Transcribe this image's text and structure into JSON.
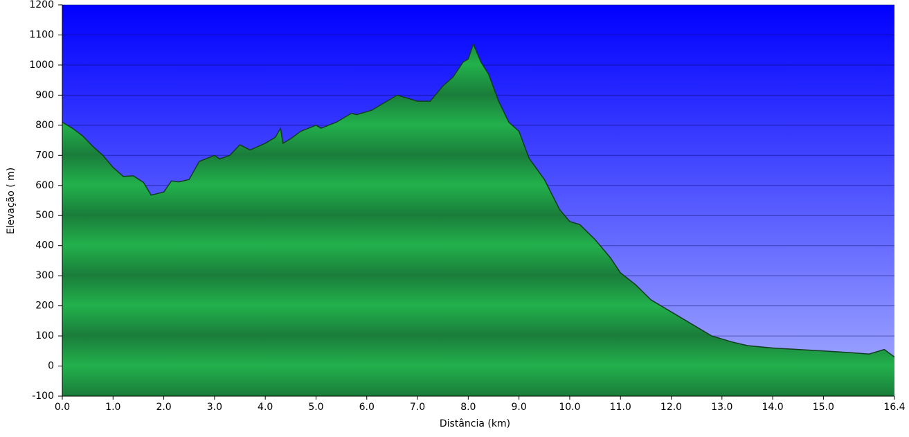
{
  "chart_data": {
    "type": "area",
    "x_label": "Distância  (km)",
    "y_label": "Elevação ( m)",
    "x": [
      0.0,
      0.2,
      0.4,
      0.6,
      0.8,
      1.0,
      1.2,
      1.4,
      1.6,
      1.75,
      2.0,
      2.15,
      2.3,
      2.5,
      2.7,
      3.0,
      3.1,
      3.3,
      3.5,
      3.7,
      4.0,
      4.2,
      4.3,
      4.35,
      4.5,
      4.7,
      5.0,
      5.1,
      5.4,
      5.7,
      5.8,
      6.1,
      6.3,
      6.6,
      6.8,
      7.0,
      7.25,
      7.5,
      7.7,
      7.9,
      8.0,
      8.1,
      8.25,
      8.4,
      8.6,
      8.8,
      9.0,
      9.2,
      9.5,
      9.8,
      10.0,
      10.2,
      10.5,
      10.8,
      11.0,
      11.3,
      11.6,
      12.0,
      12.4,
      12.8,
      13.2,
      13.5,
      14.0,
      14.5,
      15.0,
      15.5,
      15.9,
      16.1,
      16.2,
      16.4
    ],
    "series": [
      {
        "color": "#22b14c",
        "values": [
          810,
          790,
          765,
          730,
          700,
          660,
          630,
          632,
          610,
          568,
          578,
          615,
          612,
          620,
          680,
          700,
          688,
          700,
          735,
          718,
          740,
          760,
          790,
          740,
          755,
          780,
          800,
          790,
          810,
          840,
          835,
          850,
          870,
          900,
          890,
          880,
          880,
          930,
          960,
          1010,
          1020,
          1070,
          1010,
          970,
          880,
          810,
          780,
          690,
          620,
          520,
          480,
          470,
          420,
          360,
          310,
          270,
          220,
          180,
          140,
          100,
          80,
          68,
          60,
          55,
          50,
          45,
          40,
          50,
          55,
          30
        ]
      }
    ],
    "xlim": [
      0,
      16.4
    ],
    "ylim": [
      -100,
      1200
    ],
    "xticks": [
      {
        "value": 0,
        "label": "0.0"
      },
      {
        "value": 1,
        "label": "1.0"
      },
      {
        "value": 2,
        "label": "2.0"
      },
      {
        "value": 3,
        "label": "3.0"
      },
      {
        "value": 4,
        "label": "4.0"
      },
      {
        "value": 5,
        "label": "5.0"
      },
      {
        "value": 6,
        "label": "6.0"
      },
      {
        "value": 7,
        "label": "7.0"
      },
      {
        "value": 8,
        "label": "8.0"
      },
      {
        "value": 9,
        "label": "9.0"
      },
      {
        "value": 10,
        "label": "10.0"
      },
      {
        "value": 11,
        "label": "11.0"
      },
      {
        "value": 12,
        "label": "12.0"
      },
      {
        "value": 13,
        "label": "13.0"
      },
      {
        "value": 14,
        "label": "14.0"
      },
      {
        "value": 15,
        "label": "15.0"
      },
      16.4
    ],
    "yticks": [
      -100,
      0,
      100,
      200,
      300,
      400,
      500,
      600,
      700,
      800,
      900,
      1000,
      1100,
      1200
    ],
    "grid": true
  }
}
